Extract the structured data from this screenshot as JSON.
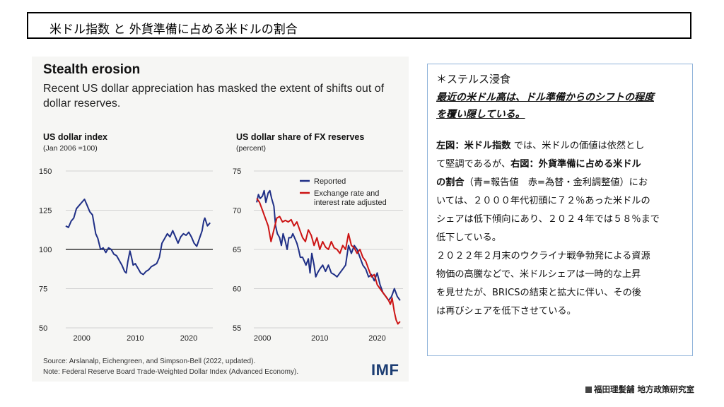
{
  "header": {
    "title": "米ドル指数 と 外貨準備に占める米ドルの割合"
  },
  "panel": {
    "title": "Stealth erosion",
    "subtitle": "Recent US dollar appreciation has masked the extent of shifts out of dollar reserves.",
    "source": "Source: Arslanalp, Eichengreen, and Simpson-Bell (2022, updated).",
    "note": "Note: Federal Reserve Board Trade-Weighted Dollar Index (Advanced Economy).",
    "logo": "IMF"
  },
  "chart_data": [
    {
      "type": "line",
      "title": "US dollar index",
      "unit": "(Jan 2006 =100)",
      "xlim": [
        1997,
        2024.5
      ],
      "ylim": [
        50,
        150
      ],
      "yticks": [
        50,
        75,
        100,
        125,
        150
      ],
      "xticks": [
        2000,
        2010,
        2020
      ],
      "reference_line": 100,
      "series": [
        {
          "color": "#1f2f86",
          "x": [
            1997.0,
            1997.5,
            1998.0,
            1998.5,
            1999.0,
            1999.5,
            2000.0,
            2000.5,
            2001.0,
            2001.5,
            2002.0,
            2002.3,
            2002.6,
            2003.0,
            2003.5,
            2004.0,
            2004.5,
            2005.0,
            2005.5,
            2006.0,
            2006.5,
            2007.0,
            2007.5,
            2008.0,
            2008.3,
            2008.6,
            2009.0,
            2009.3,
            2009.6,
            2010.0,
            2010.5,
            2011.0,
            2011.5,
            2012.0,
            2012.5,
            2013.0,
            2013.5,
            2014.0,
            2014.5,
            2015.0,
            2015.5,
            2016.0,
            2016.5,
            2017.0,
            2017.5,
            2018.0,
            2018.5,
            2019.0,
            2019.5,
            2020.0,
            2020.5,
            2021.0,
            2021.5,
            2022.0,
            2022.5,
            2022.8,
            2023.0,
            2023.5,
            2024.0
          ],
          "values": [
            115,
            114,
            118,
            120,
            126,
            128,
            130,
            132,
            128,
            124,
            122,
            116,
            110,
            107,
            100,
            101,
            98,
            101,
            100,
            97,
            96,
            93,
            90,
            86,
            85,
            92,
            99,
            95,
            90,
            91,
            88,
            85,
            84,
            86,
            87,
            89,
            90,
            91,
            95,
            104,
            107,
            110,
            108,
            112,
            108,
            104,
            108,
            110,
            109,
            111,
            108,
            104,
            102,
            107,
            112,
            118,
            120,
            115,
            117
          ]
        }
      ]
    },
    {
      "type": "line",
      "title": "US dollar share of FX reserves",
      "unit": "(percent)",
      "xlim": [
        1998.5,
        2024.5
      ],
      "ylim": [
        55,
        75
      ],
      "yticks": [
        55,
        60,
        65,
        70,
        75
      ],
      "xticks": [
        2000,
        2010,
        2020
      ],
      "legend": [
        "Reported",
        "Exchange rate and interest rate adjusted"
      ],
      "series": [
        {
          "name": "Reported",
          "color": "#1f2f86",
          "x": [
            1999.0,
            1999.3,
            1999.6,
            2000.0,
            2000.3,
            2000.6,
            2001.0,
            2001.3,
            2001.6,
            2002.0,
            2002.3,
            2002.6,
            2003.0,
            2003.3,
            2003.6,
            2004.0,
            2004.3,
            2004.6,
            2005.0,
            2005.3,
            2005.6,
            2006.0,
            2006.3,
            2006.6,
            2007.0,
            2007.3,
            2007.6,
            2008.0,
            2008.3,
            2008.6,
            2009.0,
            2009.3,
            2009.6,
            2010.0,
            2010.5,
            2011.0,
            2011.5,
            2012.0,
            2012.5,
            2013.0,
            2013.5,
            2014.0,
            2014.5,
            2015.0,
            2015.5,
            2016.0,
            2016.5,
            2017.0,
            2017.5,
            2018.0,
            2018.5,
            2019.0,
            2019.5,
            2020.0,
            2020.5,
            2021.0,
            2021.5,
            2022.0,
            2022.5,
            2023.0,
            2023.5,
            2024.0
          ],
          "values": [
            71.0,
            72.0,
            71.5,
            71.8,
            72.5,
            71.0,
            72.2,
            72.5,
            71.5,
            70.5,
            68.0,
            67.0,
            66.5,
            65.5,
            67.0,
            66.0,
            65.0,
            66.5,
            66.5,
            67.0,
            66.5,
            65.8,
            65.0,
            64.0,
            64.0,
            63.5,
            63.0,
            63.8,
            62.0,
            64.5,
            63.0,
            61.5,
            62.0,
            62.5,
            63.0,
            62.2,
            63.0,
            62.0,
            61.8,
            61.5,
            62.0,
            62.5,
            63.0,
            65.5,
            64.5,
            65.5,
            65.0,
            64.0,
            63.0,
            62.5,
            61.5,
            61.8,
            61.0,
            62.0,
            60.5,
            59.5,
            59.0,
            58.5,
            59.0,
            60.0,
            59.0,
            58.5
          ]
        },
        {
          "name": "Exchange rate and interest rate adjusted",
          "color": "#cc1414",
          "x": [
            1999.0,
            1999.5,
            2000.0,
            2000.5,
            2001.0,
            2001.5,
            2002.0,
            2002.5,
            2003.0,
            2003.5,
            2004.0,
            2004.5,
            2005.0,
            2005.5,
            2006.0,
            2006.5,
            2007.0,
            2007.5,
            2008.0,
            2008.5,
            2009.0,
            2009.5,
            2010.0,
            2010.5,
            2011.0,
            2011.5,
            2012.0,
            2012.5,
            2013.0,
            2013.5,
            2014.0,
            2014.5,
            2015.0,
            2015.5,
            2016.0,
            2016.5,
            2017.0,
            2017.5,
            2018.0,
            2018.5,
            2019.0,
            2019.5,
            2020.0,
            2020.5,
            2021.0,
            2021.5,
            2022.0,
            2022.3,
            2022.6,
            2023.0,
            2023.3,
            2023.6,
            2024.0
          ],
          "values": [
            71.5,
            71.0,
            70.0,
            69.0,
            68.0,
            66.0,
            67.5,
            69.0,
            69.2,
            68.5,
            68.7,
            68.5,
            68.8,
            68.0,
            68.5,
            67.5,
            66.5,
            66.0,
            67.5,
            66.8,
            65.5,
            66.5,
            65.0,
            66.0,
            65.3,
            65.0,
            66.0,
            65.2,
            65.0,
            64.5,
            65.5,
            65.0,
            67.0,
            65.5,
            65.2,
            64.5,
            65.0,
            64.0,
            63.5,
            62.5,
            61.5,
            61.8,
            60.5,
            60.0,
            59.5,
            59.0,
            58.5,
            58.0,
            58.8,
            57.0,
            56.0,
            55.5,
            55.8
          ]
        }
      ]
    }
  ],
  "note": {
    "heading": "＊ステルス浸食",
    "highlight_lines": [
      "最近の米ドル高は、ドル準備からのシフトの程度",
      "を覆い隠している。"
    ],
    "body": [
      [
        {
          "t": "左図：",
          "b": true
        },
        {
          "t": "米ドル指数",
          "b": true
        },
        {
          "t": " では、米ドルの価値は依然とし",
          "b": false
        }
      ],
      [
        {
          "t": "て堅調であるが、",
          "b": false
        },
        {
          "t": "右図：外貨準備に占める米ドル",
          "b": true
        }
      ],
      [
        {
          "t": "の割合",
          "b": true
        },
        {
          "t": "（青=報告値　赤=為替・金利調整値）にお",
          "b": false
        }
      ],
      [
        {
          "t": "いては、２０００年代初頭に７２％あった米ドルの",
          "b": false
        }
      ],
      [
        {
          "t": "シェアは低下傾向にあり、２０２４年では５８％まで",
          "b": false
        }
      ],
      [
        {
          "t": "低下している。",
          "b": false
        }
      ],
      [
        {
          "t": "２０２２年２月末のウクライナ戦争勃発による資源",
          "b": false
        }
      ],
      [
        {
          "t": "物価の高騰などで、米ドルシェアは一時的な上昇",
          "b": false
        }
      ],
      [
        {
          "t": "を見せたが、BRICSの結束と拡大に伴い、その後",
          "b": false
        }
      ],
      [
        {
          "t": "は再びシェアを低下させている。",
          "b": false
        }
      ]
    ]
  },
  "credit": "福田理髪舗 地方政策研究室"
}
